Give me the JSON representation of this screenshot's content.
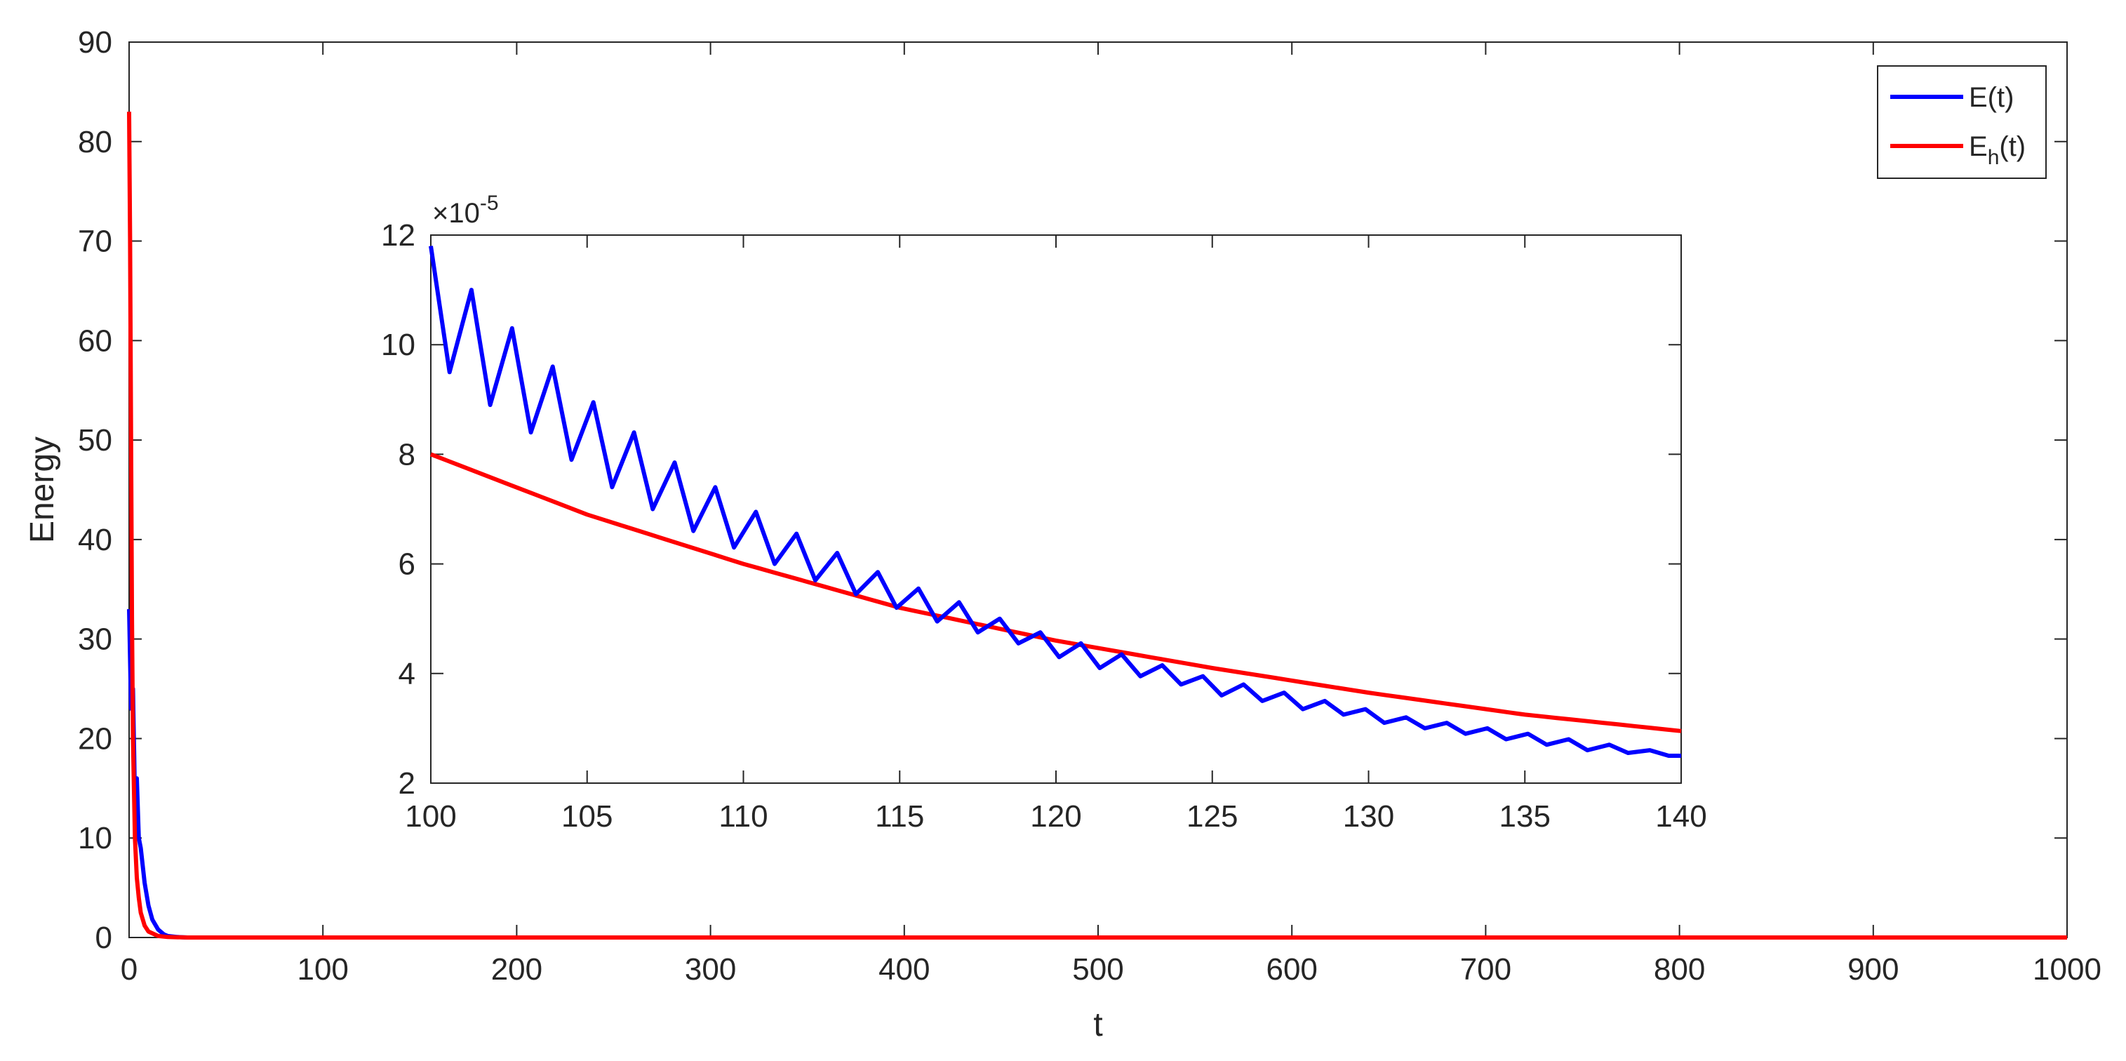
{
  "chart_data": [
    {
      "type": "line",
      "role": "main",
      "xlabel": "t",
      "ylabel": "Energy",
      "xlim": [
        0,
        1000
      ],
      "ylim": [
        0,
        90
      ],
      "xticks": [
        0,
        100,
        200,
        300,
        400,
        500,
        600,
        700,
        800,
        900,
        1000
      ],
      "yticks": [
        0,
        10,
        20,
        30,
        40,
        50,
        60,
        70,
        80,
        90
      ],
      "xtick_labels": [
        "0",
        "100",
        "200",
        "300",
        "400",
        "500",
        "600",
        "700",
        "800",
        "900",
        "1000"
      ],
      "ytick_labels": [
        "0",
        "10",
        "20",
        "30",
        "40",
        "50",
        "60",
        "70",
        "80",
        "90"
      ],
      "grid": false,
      "legend": {
        "position": "top-right",
        "entries": [
          {
            "name": "E(t)",
            "text": "E(t)",
            "color": "#0000ff"
          },
          {
            "name": "Eh(t)",
            "base": "E",
            "sub": "h",
            "suffix": "(t)",
            "color": "#ff0000"
          }
        ]
      },
      "series": [
        {
          "name": "E(t)",
          "color": "#0000ff",
          "x": [
            0,
            1,
            2,
            3,
            4,
            5,
            6,
            8,
            10,
            12,
            15,
            18,
            20,
            25,
            30,
            50,
            100,
            200,
            400,
            600,
            800,
            1000
          ],
          "y": [
            33,
            23,
            25,
            14,
            16,
            10,
            9,
            5.5,
            3.2,
            1.8,
            0.8,
            0.3,
            0.15,
            0.05,
            0,
            0,
            0,
            0,
            0,
            0,
            0,
            0
          ]
        },
        {
          "name": "Eh(t)",
          "color": "#ff0000",
          "x": [
            0,
            0.5,
            1,
            1.5,
            2,
            3,
            4,
            5,
            6,
            8,
            10,
            15,
            20,
            30,
            100,
            200,
            400,
            600,
            800,
            1000
          ],
          "y": [
            83,
            70,
            50,
            32,
            20,
            10,
            6,
            4,
            2.5,
            1.2,
            0.6,
            0.15,
            0.05,
            0,
            0,
            0,
            0,
            0,
            0,
            0
          ]
        }
      ]
    },
    {
      "type": "line",
      "role": "inset",
      "xlim": [
        100,
        140
      ],
      "ylim": [
        2,
        12
      ],
      "y_scale_label": "×10",
      "y_scale_exponent": "-5",
      "xticks": [
        100,
        105,
        110,
        115,
        120,
        125,
        130,
        135,
        140
      ],
      "yticks": [
        2,
        4,
        6,
        8,
        10,
        12
      ],
      "xtick_labels": [
        "100",
        "105",
        "110",
        "115",
        "120",
        "125",
        "130",
        "135",
        "140"
      ],
      "ytick_labels": [
        "2",
        "4",
        "6",
        "8",
        "10",
        "12"
      ],
      "series": [
        {
          "name": "E(t)",
          "color": "#0000ff",
          "description": "decaying oscillation about Eh(t); oscillation period about 1.3",
          "x": [
            100,
            100.6,
            101.3,
            101.9,
            102.6,
            103.2,
            103.9,
            104.5,
            105.2,
            105.8,
            106.5,
            107.1,
            107.8,
            108.4,
            109.1,
            109.7,
            110.4,
            111.0,
            111.7,
            112.3,
            113.0,
            113.6,
            114.3,
            114.9,
            115.6,
            116.2,
            116.9,
            117.5,
            118.2,
            118.8,
            119.5,
            120.1,
            120.8,
            121.4,
            122.1,
            122.7,
            123.4,
            124.0,
            124.7,
            125.3,
            126.0,
            126.6,
            127.3,
            127.9,
            128.6,
            129.2,
            129.9,
            130.5,
            131.2,
            131.8,
            132.5,
            133.1,
            133.8,
            134.4,
            135.1,
            135.7,
            136.4,
            137.0,
            137.7,
            138.3,
            139.0,
            139.6,
            140
          ],
          "y": [
            11.8,
            9.5,
            11.0,
            8.9,
            10.3,
            8.4,
            9.6,
            7.9,
            8.95,
            7.4,
            8.4,
            7.0,
            7.85,
            6.6,
            7.4,
            6.3,
            6.95,
            6.0,
            6.55,
            5.7,
            6.2,
            5.45,
            5.85,
            5.2,
            5.55,
            4.95,
            5.3,
            4.75,
            5.0,
            4.55,
            4.75,
            4.3,
            4.55,
            4.1,
            4.35,
            3.95,
            4.15,
            3.8,
            3.95,
            3.6,
            3.8,
            3.5,
            3.65,
            3.35,
            3.5,
            3.25,
            3.35,
            3.1,
            3.2,
            3.0,
            3.1,
            2.9,
            3.0,
            2.8,
            2.9,
            2.7,
            2.8,
            2.6,
            2.7,
            2.55,
            2.6,
            2.5,
            2.5
          ]
        },
        {
          "name": "Eh(t)",
          "color": "#ff0000",
          "x": [
            100,
            105,
            110,
            115,
            120,
            125,
            130,
            135,
            140
          ],
          "y": [
            8.0,
            6.9,
            6.0,
            5.2,
            4.6,
            4.1,
            3.65,
            3.25,
            2.95
          ]
        }
      ]
    }
  ]
}
